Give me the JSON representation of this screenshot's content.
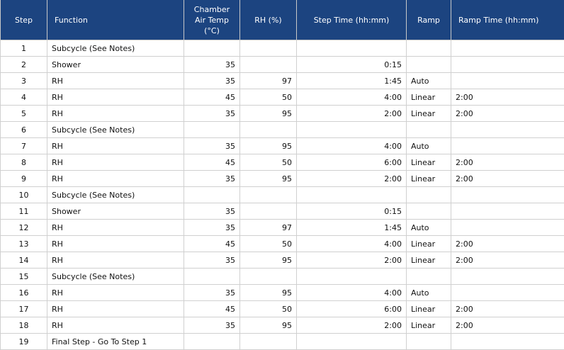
{
  "columns": [
    "Step",
    "Function",
    "Chamber Air Temp (°C)",
    "RH (%)",
    "Step Time (hh:mm)",
    "Ramp",
    "Ramp Time (hh:mm)"
  ],
  "header": {
    "step": "Step",
    "function": "Function",
    "temp_line1": "Chamber",
    "temp_line2": "Air Temp",
    "temp_line3": "(°C)",
    "rh": "RH (%)",
    "step_time": "Step Time (hh:mm)",
    "ramp": "Ramp",
    "ramp_time": "Ramp Time (hh:mm)"
  },
  "rows": [
    {
      "step": "1",
      "function": "Subcycle (See Notes)",
      "temp": "",
      "rh": "",
      "time": "",
      "ramp": "",
      "ramp_time": ""
    },
    {
      "step": "2",
      "function": "Shower",
      "temp": "35",
      "rh": "",
      "time": "0:15",
      "ramp": "",
      "ramp_time": ""
    },
    {
      "step": "3",
      "function": "RH",
      "temp": "35",
      "rh": "97",
      "time": "1:45",
      "ramp": "Auto",
      "ramp_time": ""
    },
    {
      "step": "4",
      "function": "RH",
      "temp": "45",
      "rh": "50",
      "time": "4:00",
      "ramp": "Linear",
      "ramp_time": "2:00"
    },
    {
      "step": "5",
      "function": "RH",
      "temp": "35",
      "rh": "95",
      "time": "2:00",
      "ramp": "Linear",
      "ramp_time": "2:00"
    },
    {
      "step": "6",
      "function": "Subcycle (See Notes)",
      "temp": "",
      "rh": "",
      "time": "",
      "ramp": "",
      "ramp_time": ""
    },
    {
      "step": "7",
      "function": "RH",
      "temp": "35",
      "rh": "95",
      "time": "4:00",
      "ramp": "Auto",
      "ramp_time": ""
    },
    {
      "step": "8",
      "function": "RH",
      "temp": "45",
      "rh": "50",
      "time": "6:00",
      "ramp": "Linear",
      "ramp_time": "2:00"
    },
    {
      "step": "9",
      "function": "RH",
      "temp": "35",
      "rh": "95",
      "time": "2:00",
      "ramp": "Linear",
      "ramp_time": "2:00"
    },
    {
      "step": "10",
      "function": "Subcycle (See Notes)",
      "temp": "",
      "rh": "",
      "time": "",
      "ramp": "",
      "ramp_time": ""
    },
    {
      "step": "11",
      "function": "Shower",
      "temp": "35",
      "rh": "",
      "time": "0:15",
      "ramp": "",
      "ramp_time": ""
    },
    {
      "step": "12",
      "function": "RH",
      "temp": "35",
      "rh": "97",
      "time": "1:45",
      "ramp": "Auto",
      "ramp_time": ""
    },
    {
      "step": "13",
      "function": "RH",
      "temp": "45",
      "rh": "50",
      "time": "4:00",
      "ramp": "Linear",
      "ramp_time": "2:00"
    },
    {
      "step": "14",
      "function": "RH",
      "temp": "35",
      "rh": "95",
      "time": "2:00",
      "ramp": "Linear",
      "ramp_time": "2:00"
    },
    {
      "step": "15",
      "function": "Subcycle (See Notes)",
      "temp": "",
      "rh": "",
      "time": "",
      "ramp": "",
      "ramp_time": ""
    },
    {
      "step": "16",
      "function": "RH",
      "temp": "35",
      "rh": "95",
      "time": "4:00",
      "ramp": "Auto",
      "ramp_time": ""
    },
    {
      "step": "17",
      "function": "RH",
      "temp": "45",
      "rh": "50",
      "time": "6:00",
      "ramp": "Linear",
      "ramp_time": "2:00"
    },
    {
      "step": "18",
      "function": "RH",
      "temp": "35",
      "rh": "95",
      "time": "2:00",
      "ramp": "Linear",
      "ramp_time": "2:00"
    },
    {
      "step": "19",
      "function": "Final Step - Go To Step 1",
      "temp": "",
      "rh": "",
      "time": "",
      "ramp": "",
      "ramp_time": ""
    }
  ],
  "colors": {
    "header_bg": "#1c4480",
    "header_text": "#ffffff"
  }
}
